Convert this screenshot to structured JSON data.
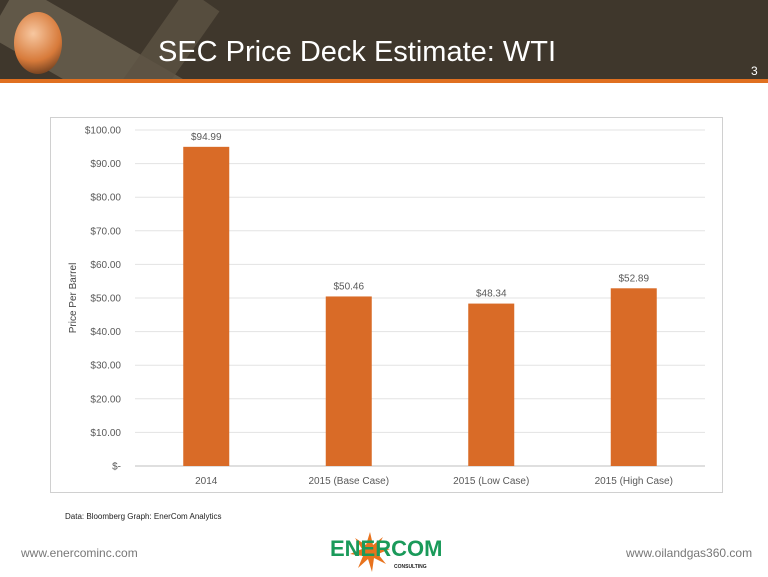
{
  "header": {
    "title": "SEC Price Deck Estimate: WTI",
    "page_number": "3"
  },
  "chart_data": {
    "type": "bar",
    "title": "",
    "categories": [
      "2014",
      "2015 (Base Case)",
      "2015 (Low Case)",
      "2015 (High Case)"
    ],
    "values": [
      94.99,
      50.46,
      48.34,
      52.89
    ],
    "data_labels": [
      "$94.99",
      "$50.46",
      "$48.34",
      "$52.89"
    ],
    "xlabel": "",
    "ylabel": "Price Per Barrel",
    "ylim": [
      0,
      100
    ],
    "yticks": [
      "$-",
      "$10.00",
      "$20.00",
      "$30.00",
      "$40.00",
      "$50.00",
      "$60.00",
      "$70.00",
      "$80.00",
      "$90.00",
      "$100.00"
    ],
    "grid": true,
    "bar_color": "#d96b27"
  },
  "footer": {
    "source": "Data: Bloomberg Graph: EnerCom Analytics",
    "left_url": "www.enercominc.com",
    "right_url": "www.oilandgas360.com",
    "logo_text": "ENERCOM",
    "logo_sub": "CONSULTING"
  }
}
